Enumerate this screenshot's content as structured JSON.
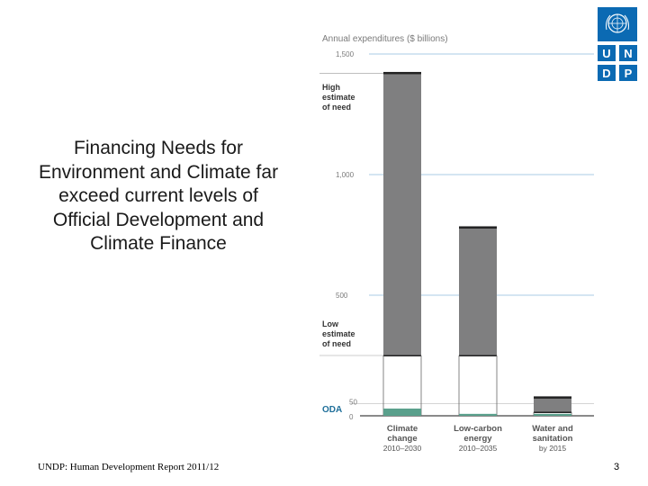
{
  "slide": {
    "title": "Financing Needs for Environment and Climate far exceed current levels of Official Development and Climate Finance",
    "footer": "UNDP: Human Development Report 2011/12",
    "page_number": "3"
  },
  "logo": {
    "letters": [
      "U",
      "N",
      "D",
      "P"
    ],
    "icon": "un-emblem-icon",
    "color": "#0b6ab3"
  },
  "chart_data": {
    "type": "bar",
    "title": "Annual expenditures ($ billions)",
    "yticks": [
      {
        "value": 1500,
        "label": "1,500"
      },
      {
        "value": 1000,
        "label": "1,000"
      },
      {
        "value": 500,
        "label": "500"
      },
      {
        "value": 50,
        "label": "50"
      },
      {
        "value": 0,
        "label": "0"
      }
    ],
    "ylim": [
      0,
      1500
    ],
    "categories": [
      {
        "name": "Climate change",
        "line1": "Climate",
        "line2": "change",
        "period": "2010–2030",
        "low": 250,
        "high": 1420,
        "oda": 30
      },
      {
        "name": "Low-carbon energy",
        "line1": "Low-carbon",
        "line2": "energy",
        "period": "2010–2035",
        "low": 250,
        "high": 780,
        "oda": 8
      },
      {
        "name": "Water and sanitation",
        "line1": "Water and",
        "line2": "sanitation",
        "period": "by 2015",
        "low": 15,
        "high": 75,
        "oda": 8
      }
    ],
    "annotations": {
      "high": [
        "High",
        "estimate",
        "of need"
      ],
      "low": [
        "Low",
        "estimate",
        "of need"
      ],
      "oda": "ODA"
    },
    "colors": {
      "range_bar": "#7f7f80",
      "cap": "#222222",
      "oda": "#5aa08c",
      "gridline": "#aacbe4",
      "tick_text": "#7a7a7a",
      "annotation": "#333333",
      "oda_text": "#1f6f9a",
      "category_label": "#555555"
    }
  }
}
